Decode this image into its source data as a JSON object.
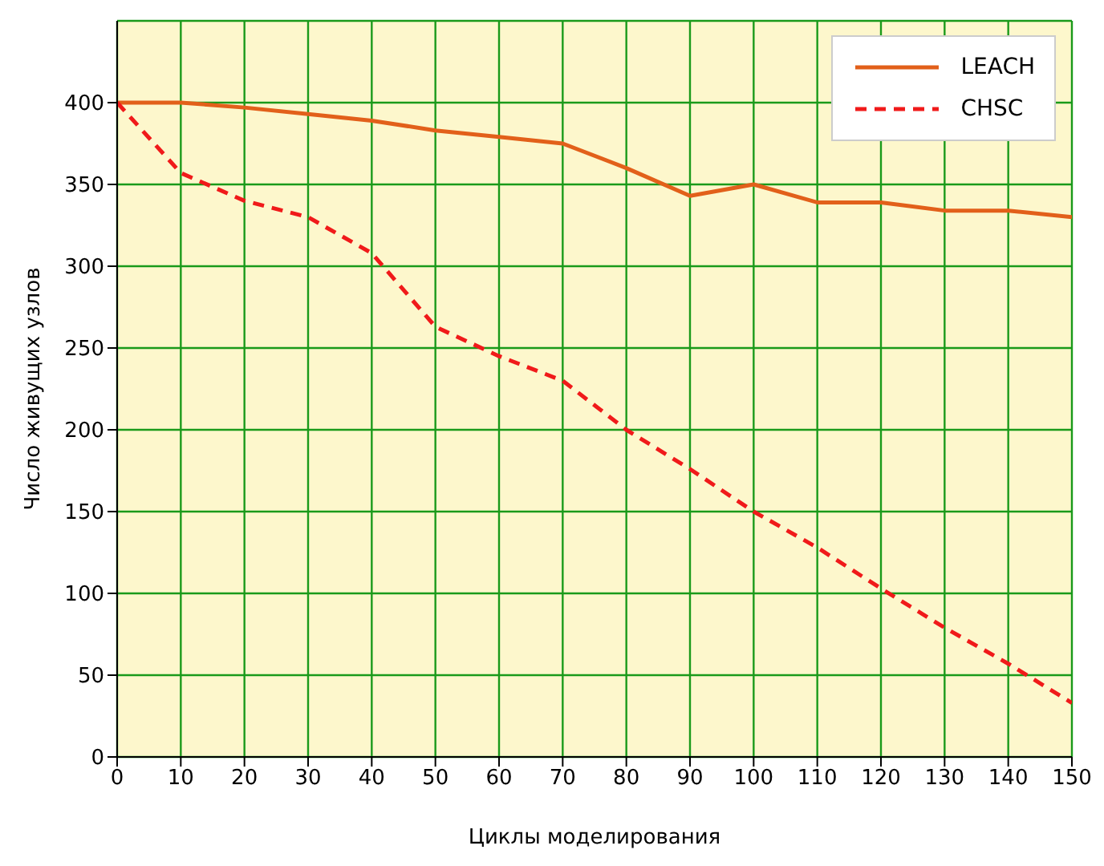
{
  "chart_data": {
    "type": "line",
    "xlabel": "Циклы моделирования",
    "ylabel": "Число живущих узлов",
    "x": [
      0,
      10,
      20,
      30,
      40,
      50,
      60,
      70,
      80,
      90,
      100,
      110,
      120,
      130,
      140,
      150
    ],
    "series": [
      {
        "name": "LEACH",
        "color": "#e2601a",
        "line_style": "solid",
        "values": [
          400,
          400,
          397,
          393,
          389,
          383,
          379,
          375,
          360,
          343,
          350,
          339,
          339,
          334,
          334,
          330
        ]
      },
      {
        "name": "CHSC",
        "color": "#f01a1a",
        "line_style": "dashed",
        "values": [
          400,
          357,
          340,
          330,
          308,
          263,
          245,
          230,
          200,
          176,
          150,
          128,
          103,
          79,
          57,
          33
        ]
      }
    ],
    "xlim": [
      0,
      150
    ],
    "xticks": [
      0,
      10,
      20,
      30,
      40,
      50,
      60,
      70,
      80,
      90,
      100,
      110,
      120,
      130,
      140,
      150
    ],
    "ylim": [
      0,
      450
    ],
    "yticks": [
      0,
      50,
      100,
      150,
      200,
      250,
      300,
      350,
      400
    ],
    "grid": true,
    "legend": "top right",
    "marker": "none"
  }
}
